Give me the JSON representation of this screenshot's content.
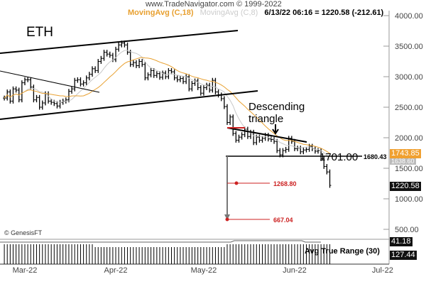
{
  "watermark": "www.TradeNavigator.com © 1999-2022",
  "legend": {
    "ma18": "MovingAvg (C,18)",
    "ma8": "MovingAvg (C,8)",
    "readout": "6/13/22 06:16 = 1220.58 (-212.61)"
  },
  "colors": {
    "ma18": "#e8a030",
    "ma8": "#c8c8c8",
    "price": "#000000",
    "annotation": "#cc2222"
  },
  "symbol": "ETH",
  "copyright": "© GenesisFT",
  "annotations": {
    "pattern": "Descending triangle",
    "pattern_line1": "Descending",
    "pattern_line2": "triangle",
    "neckline": "1701.00",
    "support": "1680.43",
    "target1": "1268.80",
    "target2": "667.04"
  },
  "badges": {
    "ma18": "1743.85",
    "ma8": "1638.60",
    "last": "1220.58",
    "atr_ma": "41.18",
    "atr": "127.44"
  },
  "atr_label": "Avg True Range (30)",
  "chart_data": {
    "type": "ohlc-bar",
    "title": "ETH",
    "start_date": "2022-02-22",
    "closes": [
      2650,
      2750,
      2600,
      2800,
      2780,
      2620,
      2900,
      2950,
      2950,
      2830,
      2620,
      2660,
      2500,
      2570,
      2720,
      2600,
      2580,
      2560,
      2520,
      2580,
      2600,
      2620,
      2760,
      2800,
      2940,
      2950,
      2880,
      2900,
      2980,
      3040,
      3130,
      3100,
      3250,
      3300,
      3400,
      3370,
      3350,
      3280,
      3450,
      3520,
      3550,
      3520,
      3400,
      3200,
      3230,
      3180,
      3250,
      3200,
      2980,
      3030,
      3100,
      3020,
      3050,
      2990,
      3060,
      3000,
      3100,
      3080,
      2980,
      2950,
      2970,
      2920,
      3000,
      2800,
      2890,
      2930,
      2820,
      2730,
      2820,
      2860,
      2780,
      2940,
      2750,
      2700,
      2640,
      2510,
      2250,
      2340,
      2070,
      1960,
      2010,
      2050,
      2140,
      2020,
      2090,
      1920,
      2010,
      1960,
      1990,
      2040,
      1980,
      1970,
      1940,
      1790,
      1720,
      1790,
      1810,
      1990,
      1940,
      1820,
      1830,
      1770,
      1800,
      1810,
      1860,
      1820,
      1780,
      1790,
      1660,
      1530,
      1440,
      1220
    ],
    "y_ticks": [
      "4000.00",
      "3500.00",
      "3000.00",
      "2500.00",
      "2000.00",
      "1500.00",
      "1000.00",
      "500.00"
    ],
    "y_range": [
      500,
      4000
    ],
    "x_ticks": [
      "Mar-22",
      "Apr-22",
      "May-22",
      "Jun-22",
      "Jul-22"
    ],
    "series": [
      {
        "name": "MovingAvg (C,18)"
      },
      {
        "name": "MovingAvg (C,8)"
      }
    ]
  }
}
